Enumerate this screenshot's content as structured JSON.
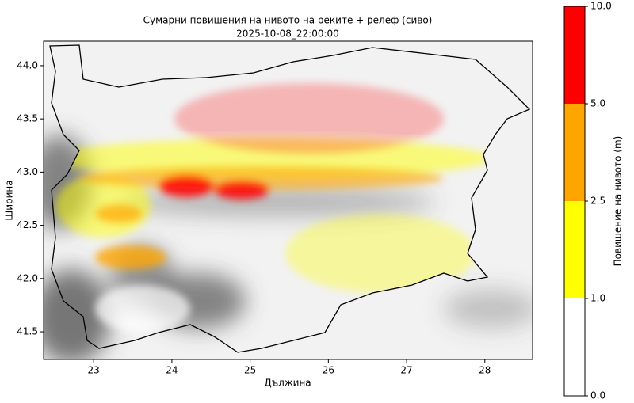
{
  "title": "Сумарни повишения на нивото на реките + релеф (сиво)",
  "subtitle": "2025-10-08_22:00:00",
  "map": {
    "xlabel": "Дължина",
    "ylabel": "Ширина",
    "xlim": [
      22.36,
      28.61
    ],
    "ylim": [
      41.24,
      44.23
    ],
    "xticks": [
      23,
      24,
      25,
      26,
      27,
      28
    ],
    "yticks": [
      {
        "value": 41.5,
        "label": "41.5"
      },
      {
        "value": 42.0,
        "label": "42.0"
      },
      {
        "value": 42.5,
        "label": "42.5"
      },
      {
        "value": 43.0,
        "label": "43.0"
      },
      {
        "value": 43.5,
        "label": "43.5"
      },
      {
        "value": 44.0,
        "label": "44.0"
      }
    ]
  },
  "colorbar": {
    "label": "Повишение на нивото (m)",
    "ticks": [
      {
        "value": 0,
        "label": "0.0"
      },
      {
        "value": 1,
        "label": "1.0"
      },
      {
        "value": 2.5,
        "label": "2.5"
      },
      {
        "value": 5,
        "label": "5.0"
      },
      {
        "value": 10,
        "label": "10.0"
      }
    ],
    "colors": [
      "#ffffff",
      "#ffff00",
      "#ffa500",
      "#ff0000"
    ]
  }
}
